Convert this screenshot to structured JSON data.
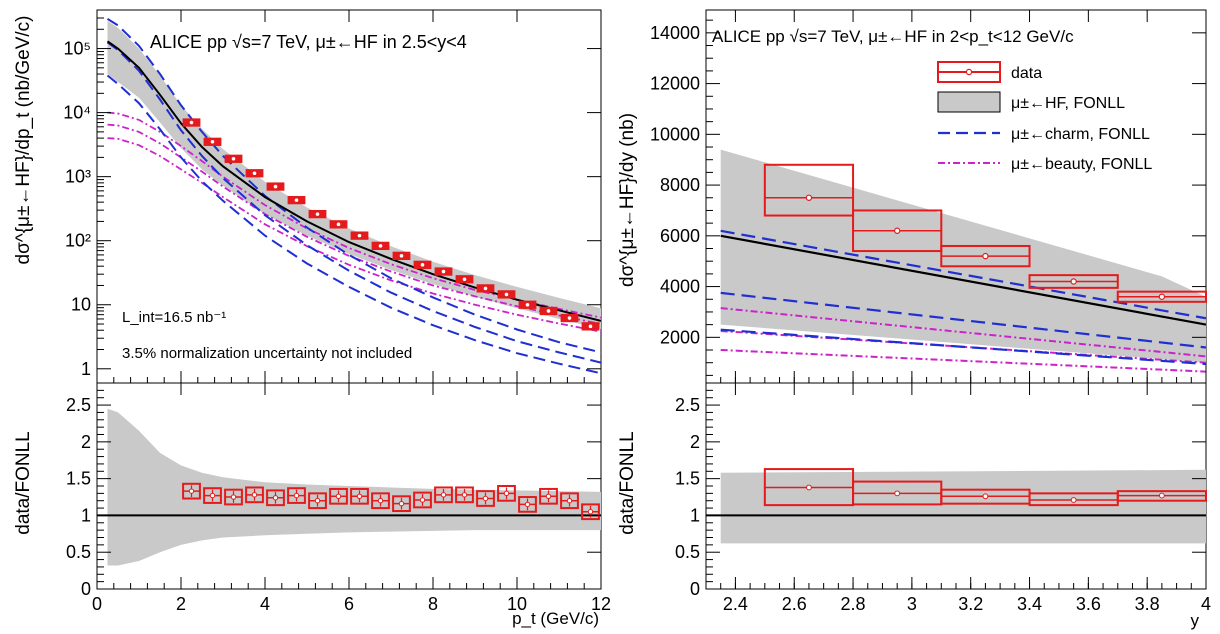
{
  "chart_data": [
    {
      "type": "line",
      "panel": "pt-differential-cross-section",
      "title": "ALICE pp √s=7 TeV, μ±←HF in 2.5<y<4",
      "ylabel": "dσ^{μ±←HF}/dp_t (nb/GeV/c)",
      "xlim": [
        0,
        12
      ],
      "ylim": [
        0.6,
        400000
      ],
      "yscale": "log",
      "yticks": [
        "1",
        "10",
        "10²",
        "10³",
        "10⁴",
        "10⁵"
      ],
      "annotations": [
        "L_int=16.5 nb⁻¹",
        "3.5% normalization uncertainty not included"
      ],
      "data": {
        "x": [
          2.25,
          2.75,
          3.25,
          3.75,
          4.25,
          4.75,
          5.25,
          5.75,
          6.25,
          6.75,
          7.25,
          7.75,
          8.25,
          8.75,
          9.25,
          9.75,
          10.25,
          10.75,
          11.25,
          11.75
        ],
        "y": [
          7000,
          3500,
          1900,
          1130,
          700,
          430,
          260,
          180,
          120,
          83,
          58,
          42,
          33,
          25,
          18,
          14.5,
          10,
          8,
          6.2,
          4.6
        ]
      },
      "series": [
        {
          "name": "μ±←HF, FONLL",
          "x": [
            0.25,
            0.5,
            1,
            1.5,
            2,
            2.5,
            3,
            4,
            5,
            6,
            7,
            8,
            9,
            10,
            11,
            12
          ],
          "y": [
            130000,
            100000,
            50000,
            19000,
            6800,
            2900,
            1450,
            480,
            200,
            95,
            52,
            30,
            18.5,
            12,
            8.2,
            5.6
          ]
        },
        {
          "name": "μ±←HF, FONLL upper",
          "x": [
            0.25,
            0.5,
            1,
            1.5,
            2,
            2.5,
            3,
            4,
            5,
            6,
            7,
            8,
            9,
            10,
            11,
            12
          ],
          "y": [
            270000,
            210000,
            100000,
            38000,
            13000,
            5600,
            2700,
            830,
            330,
            155,
            82,
            47,
            29,
            19,
            12.8,
            8.8
          ]
        },
        {
          "name": "μ±←HF, FONLL lower",
          "x": [
            0.25,
            0.5,
            1,
            1.5,
            2,
            2.5,
            3,
            4,
            5,
            6,
            7,
            8,
            9,
            10,
            11,
            12
          ],
          "y": [
            40000,
            30000,
            17000,
            7000,
            2800,
            1300,
            720,
            260,
            120,
            62,
            35,
            21,
            13.3,
            8.8,
            6,
            4.2
          ]
        },
        {
          "name": "μ±←charm, FONLL",
          "x": [
            0.25,
            0.5,
            1,
            1.5,
            2,
            2.5,
            3,
            4,
            5,
            6,
            7,
            8,
            9,
            10,
            11,
            12
          ],
          "y": [
            125000,
            95000,
            45000,
            16000,
            5300,
            2100,
            950,
            250,
            85,
            34,
            15.5,
            8,
            4.5,
            2.7,
            1.8,
            1.25
          ]
        },
        {
          "name": "μ±←charm, FONLL upper",
          "x": [
            0.25,
            0.5,
            1,
            1.5,
            2,
            2.5,
            3,
            4,
            5,
            6,
            7,
            8,
            9,
            10,
            11,
            12
          ],
          "y": [
            290000,
            230000,
            110000,
            40000,
            13000,
            5000,
            2100,
            500,
            160,
            60,
            26,
            13,
            7,
            4.1,
            2.6,
            1.8
          ]
        },
        {
          "name": "μ±←charm, FONLL lower",
          "x": [
            0.25,
            0.5,
            1,
            1.5,
            2,
            2.5,
            3,
            4,
            5,
            6,
            7,
            8,
            9,
            10,
            11,
            12
          ],
          "y": [
            38000,
            28000,
            14000,
            5500,
            2000,
            850,
            420,
            120,
            44,
            19,
            9,
            4.8,
            2.8,
            1.75,
            1.2,
            0.85
          ]
        },
        {
          "name": "μ±←beauty, FONLL",
          "x": [
            0.25,
            0.5,
            1,
            1.5,
            2,
            2.5,
            3,
            4,
            5,
            6,
            7,
            8,
            9,
            10,
            11,
            12
          ],
          "y": [
            6500,
            6300,
            5000,
            3300,
            2000,
            1200,
            700,
            260,
            115,
            58,
            33,
            20,
            13.5,
            9.5,
            6.8,
            5
          ]
        },
        {
          "name": "μ±←beauty, FONLL upper",
          "x": [
            0.25,
            0.5,
            1,
            1.5,
            2,
            2.5,
            3,
            4,
            5,
            6,
            7,
            8,
            9,
            10,
            11,
            12
          ],
          "y": [
            10000,
            9700,
            7700,
            5000,
            3000,
            1750,
            1000,
            360,
            155,
            77,
            43,
            26,
            17,
            12,
            8.6,
            6.3
          ]
        },
        {
          "name": "μ±←beauty, FONLL lower",
          "x": [
            0.25,
            0.5,
            1,
            1.5,
            2,
            2.5,
            3,
            4,
            5,
            6,
            7,
            8,
            9,
            10,
            11,
            12
          ],
          "y": [
            4000,
            3900,
            3100,
            2100,
            1300,
            800,
            480,
            180,
            82,
            42,
            24,
            15,
            10,
            7,
            5.1,
            3.8
          ]
        }
      ]
    },
    {
      "type": "line",
      "panel": "pt-ratio",
      "xlabel": "p_t (GeV/c)",
      "ylabel": "data/FONLL",
      "xlim": [
        0,
        12
      ],
      "ylim": [
        0,
        2.8
      ],
      "data": {
        "x": [
          2.25,
          2.75,
          3.25,
          3.75,
          4.25,
          4.75,
          5.25,
          5.75,
          6.25,
          6.75,
          7.25,
          7.75,
          8.25,
          8.75,
          9.25,
          9.75,
          10.25,
          10.75,
          11.25,
          11.75
        ],
        "y": [
          1.33,
          1.27,
          1.25,
          1.28,
          1.24,
          1.27,
          1.2,
          1.26,
          1.26,
          1.2,
          1.16,
          1.21,
          1.28,
          1.28,
          1.23,
          1.3,
          1.15,
          1.26,
          1.2,
          1.05
        ]
      },
      "band": {
        "x": [
          0.25,
          0.5,
          1,
          1.5,
          2,
          2.5,
          3,
          4,
          5,
          6,
          7,
          8,
          9,
          10,
          11,
          12
        ],
        "upper": [
          2.45,
          2.4,
          2.15,
          1.85,
          1.68,
          1.58,
          1.52,
          1.45,
          1.42,
          1.4,
          1.38,
          1.36,
          1.35,
          1.34,
          1.33,
          1.32
        ],
        "lower": [
          0.32,
          0.32,
          0.38,
          0.5,
          0.6,
          0.66,
          0.7,
          0.73,
          0.75,
          0.77,
          0.78,
          0.79,
          0.8,
          0.8,
          0.8,
          0.8
        ]
      },
      "reference": 1
    },
    {
      "type": "line",
      "panel": "y-differential-cross-section",
      "title": "ALICE pp √s=7 TeV, μ±←HF in 2<p_t<12 GeV/c",
      "ylabel": "dσ^{μ±←HF}/dy (nb)",
      "xlim": [
        2.3,
        4
      ],
      "ylim": [
        200,
        14900
      ],
      "legend_position": "top-right",
      "legend": [
        "data",
        "μ±←HF, FONLL",
        "μ±←charm, FONLL",
        "μ±←beauty, FONLL"
      ],
      "data": {
        "x": [
          2.65,
          2.95,
          3.25,
          3.55,
          3.85
        ],
        "y": [
          7500,
          6200,
          5200,
          4200,
          3600
        ],
        "sys_low": [
          6800,
          5400,
          4800,
          3950,
          3400
        ],
        "sys_high": [
          8800,
          7000,
          5600,
          4450,
          3800
        ]
      },
      "series": [
        {
          "name": "μ±←HF, FONLL",
          "x": [
            2.35,
            4
          ],
          "y": [
            6000,
            2500
          ]
        },
        {
          "name": "μ±←HF, FONLL upper",
          "x": [
            2.35,
            3.85,
            4
          ],
          "y": [
            9400,
            4400,
            3600
          ]
        },
        {
          "name": "μ±←HF, FONLL lower",
          "x": [
            2.35,
            4
          ],
          "y": [
            2500,
            1000
          ]
        },
        {
          "name": "μ±←charm, FONLL",
          "x": [
            2.35,
            4
          ],
          "y": [
            3750,
            1600
          ]
        },
        {
          "name": "μ±←charm, FONLL upper",
          "x": [
            2.35,
            4
          ],
          "y": [
            6200,
            2750
          ]
        },
        {
          "name": "μ±←charm, FONLL lower",
          "x": [
            2.35,
            4
          ],
          "y": [
            2300,
            950
          ]
        },
        {
          "name": "μ±←beauty, FONLL",
          "x": [
            2.35,
            4
          ],
          "y": [
            2250,
            1000
          ]
        },
        {
          "name": "μ±←beauty, FONLL upper",
          "x": [
            2.35,
            4
          ],
          "y": [
            3150,
            1250
          ]
        },
        {
          "name": "μ±←beauty, FONLL lower",
          "x": [
            2.35,
            4
          ],
          "y": [
            1500,
            650
          ]
        }
      ]
    },
    {
      "type": "line",
      "panel": "y-ratio",
      "xlabel": "y",
      "ylabel": "data/FONLL",
      "xlim": [
        2.3,
        4
      ],
      "ylim": [
        0,
        2.8
      ],
      "data": {
        "x": [
          2.65,
          2.95,
          3.25,
          3.55,
          3.85
        ],
        "y": [
          1.38,
          1.3,
          1.26,
          1.21,
          1.27
        ],
        "sys_low": [
          1.14,
          1.15,
          1.16,
          1.14,
          1.2
        ],
        "sys_high": [
          1.63,
          1.46,
          1.35,
          1.3,
          1.33
        ]
      },
      "band": {
        "x": [
          2.35,
          4
        ],
        "upper": [
          1.58,
          1.62
        ],
        "lower": [
          0.62,
          0.62
        ]
      },
      "reference": 1
    }
  ]
}
